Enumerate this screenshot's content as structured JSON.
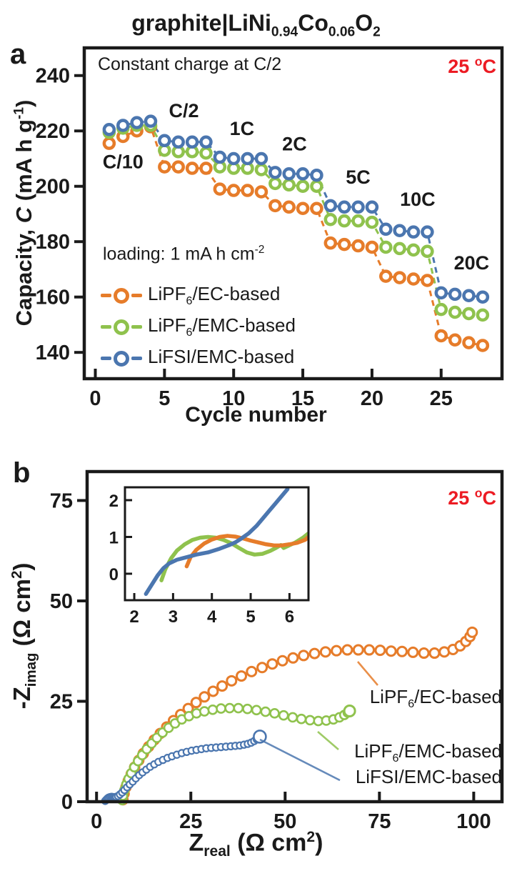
{
  "accent_colors": {
    "orange": "#E67C2A",
    "green": "#8FC24D",
    "blue": "#4B76AF",
    "red": "#EC1B23",
    "ink": "#1a1a1a"
  },
  "title": {
    "seg1": "graphite|LiNi",
    "sub1": "0.94",
    "seg2": "Co",
    "sub2": "0.06",
    "seg3": "O",
    "sub3": "2"
  },
  "panel_a": {
    "letter": "a",
    "note_charge": "Constant charge at C/2",
    "temp": {
      "pre": "25 ",
      "sup": "o",
      "post": "C"
    },
    "loading": {
      "pre": "loading: 1 mA h cm",
      "sup": "-2"
    },
    "legend": [
      {
        "pre": "LiPF",
        "sub": "6",
        "post": "/EC-based",
        "color_key": "orange"
      },
      {
        "pre": "LiPF",
        "sub": "6",
        "post": "/EMC-based",
        "color_key": "green"
      },
      {
        "pre": "LiFSI/EMC-based",
        "sub": "",
        "post": "",
        "color_key": "blue"
      }
    ],
    "ylabel": {
      "pre": "Capacity, ",
      "italic": "C",
      "mid": " (mA h g",
      "sup": "-1",
      "post": ")"
    },
    "xlabel": "Cycle number"
  },
  "panel_b": {
    "letter": "b",
    "temp": {
      "pre": "25 ",
      "sup": "o",
      "post": "C"
    },
    "ylabel": {
      "pre": "-Z",
      "sub": "imag",
      "mid": " (Ω cm",
      "sup": "2",
      "post": ")"
    },
    "xlabel": {
      "pre": "Z",
      "sub": "real",
      "mid": " (Ω cm",
      "sup": "2",
      "post": ")"
    },
    "annotations": [
      {
        "pre": "LiPF",
        "sub": "6",
        "post": "/EC-based",
        "color_key": "orange"
      },
      {
        "pre": "LiPF",
        "sub": "6",
        "post": "/EMC-based",
        "color_key": "green"
      },
      {
        "pre": "LiFSI/EMC-based",
        "sub": "",
        "post": "",
        "color_key": "blue"
      }
    ]
  },
  "chart_data": [
    {
      "id": "a",
      "type": "scatter",
      "title": "graphite|LiNi0.94Co0.06O2  rate capability",
      "xlabel": "Cycle number",
      "ylabel": "Capacity, C (mA h g-1)",
      "xlim": [
        -0.8,
        29.4
      ],
      "ylim": [
        130.5,
        250
      ],
      "xticks": [
        0,
        5,
        10,
        15,
        20,
        25
      ],
      "yticks": [
        140,
        160,
        180,
        200,
        220,
        240
      ],
      "grid": false,
      "legend_position": "lower-left",
      "rate_labels": [
        "C/10",
        "C/2",
        "1C",
        "2C",
        "5C",
        "10C",
        "20C"
      ],
      "rate_label_xy": [
        [
          2.0,
          206.5
        ],
        [
          6.4,
          225.0
        ],
        [
          10.6,
          218.5
        ],
        [
          14.4,
          213.0
        ],
        [
          19.0,
          201.0
        ],
        [
          23.3,
          193.0
        ],
        [
          27.2,
          170.0
        ]
      ],
      "rate_steps": [
        {
          "label": "C/10",
          "cycles": [
            1,
            4
          ]
        },
        {
          "label": "C/2",
          "cycles": [
            5,
            8
          ]
        },
        {
          "label": "1C",
          "cycles": [
            9,
            12
          ]
        },
        {
          "label": "2C",
          "cycles": [
            13,
            16
          ]
        },
        {
          "label": "5C",
          "cycles": [
            17,
            20
          ]
        },
        {
          "label": "10C",
          "cycles": [
            21,
            24
          ]
        },
        {
          "label": "20C",
          "cycles": [
            25,
            28
          ]
        }
      ],
      "series": [
        {
          "name": "LiPF6/EC-based",
          "color_key": "orange",
          "x": [
            1,
            2,
            3,
            4,
            5,
            6,
            7,
            8,
            9,
            10,
            11,
            12,
            13,
            14,
            15,
            16,
            17,
            18,
            19,
            20,
            21,
            22,
            23,
            24,
            25,
            26,
            27,
            28
          ],
          "y": [
            215.5,
            218,
            220,
            221.5,
            207,
            207,
            206.5,
            206.5,
            199,
            198.5,
            198.5,
            198,
            193,
            192.5,
            192,
            192,
            179.5,
            179,
            178.5,
            178,
            167.5,
            167,
            166.5,
            166,
            146,
            144.5,
            143.5,
            142.5
          ]
        },
        {
          "name": "LiPF6/EMC-based",
          "color_key": "green",
          "x": [
            1,
            2,
            3,
            4,
            5,
            6,
            7,
            8,
            9,
            10,
            11,
            12,
            13,
            14,
            15,
            16,
            17,
            18,
            19,
            20,
            21,
            22,
            23,
            24,
            25,
            26,
            27,
            28
          ],
          "y": [
            219.5,
            221,
            222,
            222,
            213,
            212.5,
            212.5,
            212,
            207,
            206.5,
            206.5,
            206,
            201,
            200.5,
            200,
            200,
            188,
            187.5,
            187.5,
            187,
            178,
            177.5,
            177,
            176.5,
            155.5,
            154.5,
            154,
            153.5
          ]
        },
        {
          "name": "LiFSI/EMC-based",
          "color_key": "blue",
          "x": [
            1,
            2,
            3,
            4,
            5,
            6,
            7,
            8,
            9,
            10,
            11,
            12,
            13,
            14,
            15,
            16,
            17,
            18,
            19,
            20,
            21,
            22,
            23,
            24,
            25,
            26,
            27,
            28
          ],
          "y": [
            220.5,
            222,
            223,
            223.5,
            216.5,
            216,
            216,
            216,
            210.5,
            210,
            210,
            210,
            205,
            204.5,
            204.5,
            204,
            193,
            192.5,
            192.5,
            192.5,
            184.5,
            184,
            183.5,
            183.5,
            161.5,
            161,
            160.5,
            160
          ]
        }
      ]
    },
    {
      "id": "b",
      "type": "scatter",
      "xlabel": "Z_real (Ohm cm2)",
      "ylabel": "-Z_imag (Ohm cm2)",
      "xlim": [
        -2.5,
        107.5
      ],
      "ylim": [
        0,
        82.2
      ],
      "xticks": [
        0,
        25,
        50,
        75,
        100
      ],
      "yticks": [
        0,
        25,
        50,
        75
      ],
      "grid": false,
      "series": [
        {
          "name": "LiPF6/EC-based",
          "color_key": "orange",
          "marker_r": 6.5,
          "stroke_w": 3,
          "x": [
            7.0,
            7.3,
            7.8,
            8.4,
            9.2,
            10.1,
            11.2,
            12.4,
            13.8,
            15.3,
            16.9,
            18.6,
            20.4,
            22.3,
            24.3,
            26.4,
            28.6,
            30.9,
            33.3,
            35.8,
            38.4,
            41.1,
            43.9,
            46.6,
            49.3,
            52.1,
            54.9,
            57.8,
            60.7,
            63.6,
            66.5,
            69.4,
            72.3,
            75.2,
            78.1,
            81.0,
            83.9,
            86.8,
            89.6,
            92.2,
            94.5,
            96.4,
            97.9,
            99.0,
            99.6
          ],
          "y": [
            0.5,
            2.0,
            3.6,
            5.2,
            6.9,
            8.6,
            10.3,
            12.0,
            13.7,
            15.4,
            17.0,
            18.6,
            20.2,
            21.7,
            23.2,
            24.7,
            26.1,
            27.5,
            28.8,
            30.1,
            31.3,
            32.4,
            33.4,
            34.3,
            35.1,
            35.8,
            36.4,
            36.9,
            37.3,
            37.6,
            37.8,
            37.8,
            37.8,
            37.7,
            37.5,
            37.4,
            37.2,
            37.0,
            37.0,
            37.3,
            37.9,
            38.8,
            39.9,
            41.1,
            42.2
          ]
        },
        {
          "name": "LiPF6/EMC-based",
          "color_key": "green",
          "marker_r": 6,
          "stroke_w": 2.6,
          "end_marker_r": 7.5,
          "x": [
            6.8,
            7.0,
            7.4,
            7.9,
            8.5,
            9.2,
            10.0,
            11.0,
            12.1,
            13.3,
            14.6,
            16.0,
            17.5,
            19.1,
            20.8,
            22.6,
            24.5,
            26.5,
            28.6,
            30.8,
            33.0,
            35.3,
            37.6,
            40.0,
            42.4,
            44.8,
            47.2,
            49.6,
            52.0,
            54.3,
            56.6,
            58.8,
            60.9,
            62.8,
            64.4,
            65.7,
            66.6,
            67.1
          ],
          "y": [
            0.4,
            1.5,
            2.9,
            4.3,
            5.7,
            7.1,
            8.6,
            10.1,
            11.6,
            13.1,
            14.5,
            15.9,
            17.2,
            18.4,
            19.5,
            20.5,
            21.3,
            22.0,
            22.5,
            22.9,
            23.2,
            23.3,
            23.3,
            23.1,
            22.8,
            22.4,
            22.0,
            21.5,
            21.0,
            20.6,
            20.3,
            20.1,
            20.2,
            20.5,
            21.0,
            21.6,
            22.2,
            22.6
          ]
        },
        {
          "name": "LiFSI/EMC-based",
          "color_key": "blue",
          "marker_r": 4.6,
          "stroke_w": 2.2,
          "end_marker_r": 8.5,
          "x": [
            2.3,
            2.6,
            2.9,
            3.2,
            3.6,
            4.0,
            4.4,
            4.8,
            5.2,
            5.7,
            6.2,
            6.8,
            7.4,
            8.1,
            8.8,
            9.6,
            10.4,
            11.3,
            12.2,
            13.2,
            14.2,
            15.3,
            16.4,
            17.6,
            18.8,
            20.0,
            21.3,
            22.6,
            23.9,
            25.2,
            26.5,
            27.8,
            29.1,
            30.4,
            31.7,
            33.0,
            34.3,
            35.6,
            36.8,
            38.0,
            39.1,
            40.1,
            41.0,
            41.8,
            42.5,
            43.0,
            43.3
          ],
          "y": [
            0.2,
            0.5,
            0.8,
            1.0,
            1.15,
            1.2,
            1.15,
            1.1,
            1.2,
            1.4,
            1.8,
            2.3,
            2.9,
            3.6,
            4.3,
            5.0,
            5.8,
            6.6,
            7.3,
            8.0,
            8.7,
            9.3,
            9.9,
            10.4,
            10.9,
            11.3,
            11.7,
            12.1,
            12.4,
            12.7,
            12.9,
            13.1,
            13.3,
            13.4,
            13.5,
            13.6,
            13.7,
            13.8,
            13.9,
            14.0,
            14.2,
            14.4,
            14.7,
            15.1,
            15.5,
            15.9,
            16.2
          ]
        }
      ],
      "inset": {
        "type": "line",
        "xlim": [
          1.76,
          6.49
        ],
        "ylim": [
          -0.72,
          2.35
        ],
        "xticks": [
          2,
          3,
          4,
          5,
          6
        ],
        "yticks": [
          0,
          1,
          2
        ],
        "series": [
          {
            "name": "LiPF6/EMC-based",
            "color_key": "green",
            "x": [
              2.7,
              2.8,
              2.95,
              3.1,
              3.3,
              3.5,
              3.7,
              3.9,
              4.1,
              4.3,
              4.5,
              4.7,
              4.9,
              5.1,
              5.3,
              5.5,
              5.65,
              5.78,
              5.85,
              5.95,
              6.15,
              6.35,
              6.49
            ],
            "y": [
              -0.18,
              0.12,
              0.42,
              0.63,
              0.8,
              0.92,
              0.98,
              1.0,
              0.98,
              0.92,
              0.83,
              0.7,
              0.58,
              0.52,
              0.54,
              0.62,
              0.7,
              0.78,
              0.7,
              0.75,
              0.85,
              0.98,
              1.1
            ]
          },
          {
            "name": "LiPF6/EC-based",
            "color_key": "orange",
            "x": [
              3.35,
              3.45,
              3.6,
              3.8,
              4.0,
              4.2,
              4.4,
              4.6,
              4.8,
              5.0,
              5.2,
              5.4,
              5.6,
              5.8,
              6.0,
              6.2,
              6.4,
              6.49
            ],
            "y": [
              0.2,
              0.45,
              0.65,
              0.82,
              0.93,
              1.0,
              1.03,
              1.01,
              0.96,
              0.9,
              0.85,
              0.8,
              0.77,
              0.77,
              0.8,
              0.84,
              0.92,
              1.0
            ]
          },
          {
            "name": "LiFSI/EMC-based",
            "color_key": "blue",
            "x": [
              2.3,
              2.45,
              2.6,
              2.75,
              2.9,
              3.1,
              3.35,
              3.6,
              3.9,
              4.2,
              4.45,
              4.6,
              4.75,
              4.95,
              5.15,
              5.35,
              5.55,
              5.75,
              5.95
            ],
            "y": [
              -0.55,
              -0.3,
              -0.05,
              0.15,
              0.28,
              0.38,
              0.45,
              0.52,
              0.58,
              0.68,
              0.78,
              0.85,
              0.95,
              1.1,
              1.3,
              1.55,
              1.8,
              2.05,
              2.3
            ]
          }
        ]
      }
    }
  ]
}
